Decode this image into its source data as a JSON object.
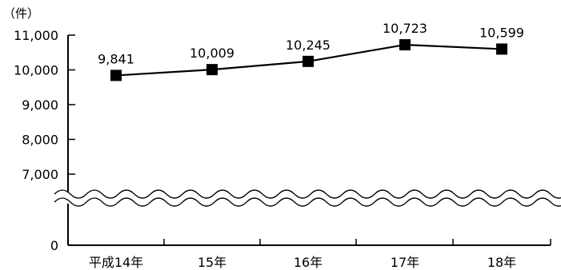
{
  "chart_data": {
    "type": "line",
    "unit": "（件）",
    "categories": [
      "平成14年",
      "15年",
      "16年",
      "17年",
      "18年"
    ],
    "series": [
      {
        "values": [
          9841,
          10009,
          10245,
          10723,
          10599
        ],
        "labels": [
          "9,841",
          "10,009",
          "10,245",
          "10,723",
          "10,599"
        ]
      }
    ],
    "ylim": [
      0,
      11000
    ],
    "axis_break": true,
    "y_ticks": [
      {
        "value": 11000,
        "label": "11,000"
      },
      {
        "value": 10000,
        "label": "10,000"
      },
      {
        "value": 9000,
        "label": "9,000"
      },
      {
        "value": 8000,
        "label": "8,000"
      },
      {
        "value": 7000,
        "label": "7,000"
      },
      {
        "value": 0,
        "label": "0"
      }
    ],
    "grid": false,
    "marker": "square",
    "colors": {
      "line": "#000000",
      "marker": "#000000"
    }
  }
}
